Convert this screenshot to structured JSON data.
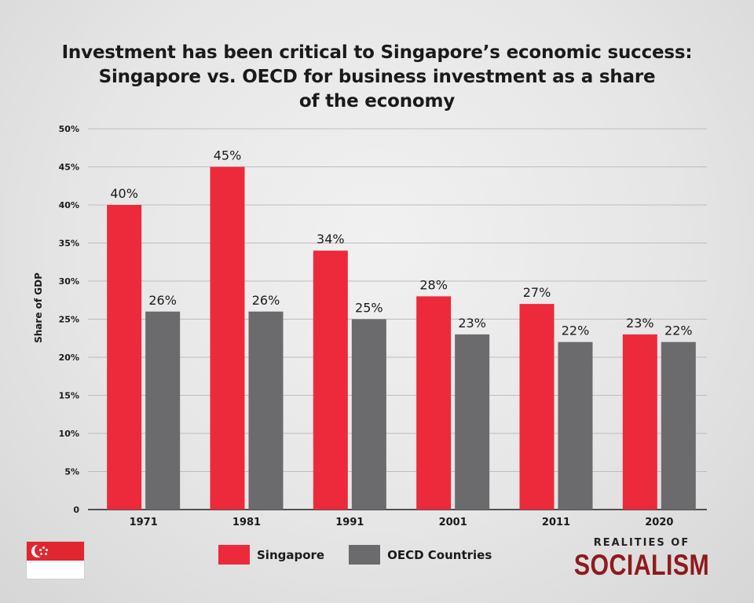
{
  "title_lines": [
    "Investment has been critical to Singapore’s economic success:",
    "Singapore vs. OECD for business investment as a share",
    "of the economy"
  ],
  "chart_data": {
    "type": "bar",
    "categories": [
      "1971",
      "1981",
      "1991",
      "2001",
      "2011",
      "2020"
    ],
    "series": [
      {
        "name": "Singapore",
        "values": [
          40,
          45,
          34,
          28,
          27,
          23
        ],
        "labels": [
          "40%",
          "45%",
          "34%",
          "28%",
          "27%",
          "23%"
        ],
        "color": "#ec2a3c"
      },
      {
        "name": "OECD Countries",
        "values": [
          26,
          26,
          25,
          23,
          22,
          22
        ],
        "labels": [
          "26%",
          "26%",
          "25%",
          "23%",
          "22%",
          "22%"
        ],
        "color": "#6b6b6d"
      }
    ],
    "ylabel": "Share of GDP",
    "xlabel": "",
    "ylim": [
      0,
      50
    ],
    "yticks": [
      0,
      5,
      10,
      15,
      20,
      25,
      30,
      35,
      40,
      45,
      50
    ],
    "ytick_labels": [
      "0",
      "5%",
      "10%",
      "15%",
      "20%",
      "25%",
      "30%",
      "35%",
      "40%",
      "45%",
      "50%"
    ],
    "grid": true,
    "legend_position": "bottom"
  },
  "brand": {
    "top": "REALITIES OF",
    "main": "SOCIALISM"
  },
  "flag_icon": "singapore-flag-icon"
}
